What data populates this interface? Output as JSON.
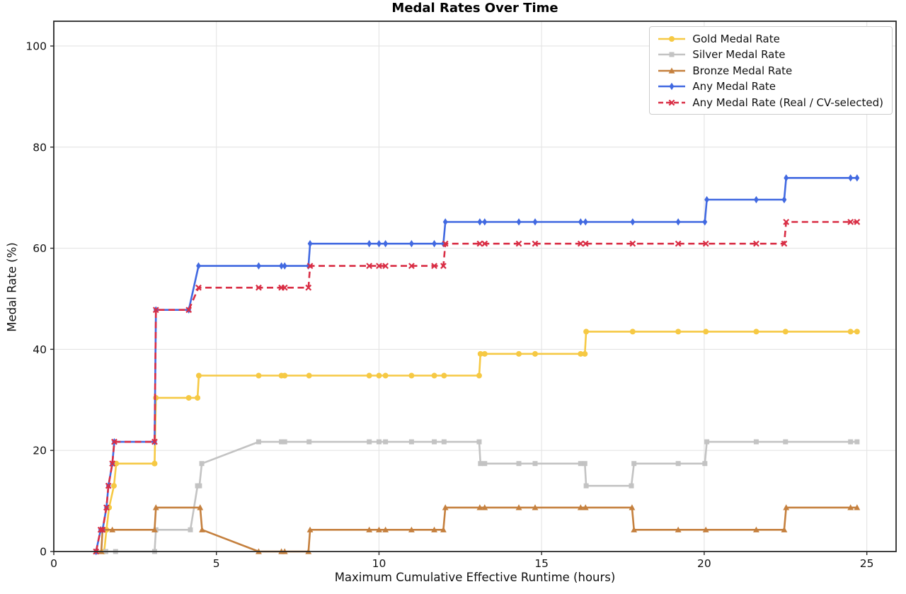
{
  "title": "Medal Rates Over Time",
  "chart_data": {
    "type": "line",
    "title": "Medal Rates Over Time",
    "xlabel": "Maximum Cumulative Effective Runtime (hours)",
    "ylabel": "Medal Rate (%)",
    "xlim": [
      0,
      25.9
    ],
    "ylim": [
      0,
      104.9
    ],
    "x_ticks": [
      0,
      5,
      10,
      15,
      20,
      25
    ],
    "y_ticks": [
      0,
      20,
      40,
      60,
      80,
      100
    ],
    "grid": true,
    "grid_color": "#e4e4e4",
    "spine_color": "#2a2a2a",
    "legend_position": "upper right",
    "series": [
      {
        "name": "Gold Medal Rate",
        "color": "#f6c944",
        "marker": "circle",
        "dash": "solid",
        "points": [
          [
            1.55,
            0
          ],
          [
            1.62,
            4.3
          ],
          [
            1.7,
            8.7
          ],
          [
            1.85,
            13.0
          ],
          [
            1.92,
            17.4
          ],
          [
            3.1,
            17.4
          ],
          [
            3.14,
            30.4
          ],
          [
            4.15,
            30.4
          ],
          [
            4.42,
            30.4
          ],
          [
            4.46,
            34.8
          ],
          [
            6.3,
            34.8
          ],
          [
            7.0,
            34.8
          ],
          [
            7.1,
            34.8
          ],
          [
            7.85,
            34.8
          ],
          [
            9.7,
            34.8
          ],
          [
            10.0,
            34.8
          ],
          [
            10.2,
            34.8
          ],
          [
            11.0,
            34.8
          ],
          [
            11.7,
            34.8
          ],
          [
            12.0,
            34.8
          ],
          [
            13.08,
            34.8
          ],
          [
            13.12,
            39.1
          ],
          [
            13.25,
            39.1
          ],
          [
            14.3,
            39.1
          ],
          [
            14.8,
            39.1
          ],
          [
            16.2,
            39.1
          ],
          [
            16.33,
            39.1
          ],
          [
            16.37,
            43.5
          ],
          [
            17.8,
            43.5
          ],
          [
            19.2,
            43.5
          ],
          [
            20.05,
            43.5
          ],
          [
            21.6,
            43.5
          ],
          [
            22.5,
            43.5
          ],
          [
            24.5,
            43.5
          ],
          [
            24.7,
            43.5
          ]
        ]
      },
      {
        "name": "Silver Medal Rate",
        "color": "#c3c3c3",
        "marker": "square",
        "dash": "solid",
        "points": [
          [
            1.3,
            0
          ],
          [
            1.6,
            0
          ],
          [
            1.9,
            0
          ],
          [
            3.1,
            0
          ],
          [
            3.14,
            4.3
          ],
          [
            4.2,
            4.3
          ],
          [
            4.42,
            13.0
          ],
          [
            4.48,
            13.0
          ],
          [
            4.55,
            17.4
          ],
          [
            6.3,
            21.7
          ],
          [
            7.0,
            21.7
          ],
          [
            7.1,
            21.7
          ],
          [
            7.85,
            21.7
          ],
          [
            9.7,
            21.7
          ],
          [
            10.0,
            21.7
          ],
          [
            10.2,
            21.7
          ],
          [
            11.0,
            21.7
          ],
          [
            11.7,
            21.7
          ],
          [
            12.0,
            21.7
          ],
          [
            13.08,
            21.7
          ],
          [
            13.12,
            17.4
          ],
          [
            13.25,
            17.4
          ],
          [
            14.3,
            17.4
          ],
          [
            14.8,
            17.4
          ],
          [
            16.2,
            17.4
          ],
          [
            16.33,
            17.4
          ],
          [
            16.37,
            13.0
          ],
          [
            17.76,
            13.0
          ],
          [
            17.84,
            17.4
          ],
          [
            19.2,
            17.4
          ],
          [
            20.02,
            17.4
          ],
          [
            20.08,
            21.7
          ],
          [
            21.6,
            21.7
          ],
          [
            22.5,
            21.7
          ],
          [
            24.5,
            21.7
          ],
          [
            24.7,
            21.7
          ]
        ]
      },
      {
        "name": "Bronze Medal Rate",
        "color": "#c5803e",
        "marker": "triangle",
        "dash": "solid",
        "points": [
          [
            1.3,
            0
          ],
          [
            1.46,
            0
          ],
          [
            1.5,
            4.3
          ],
          [
            1.8,
            4.3
          ],
          [
            3.1,
            4.3
          ],
          [
            3.14,
            8.7
          ],
          [
            4.5,
            8.7
          ],
          [
            4.56,
            4.3
          ],
          [
            6.3,
            0
          ],
          [
            7.0,
            0
          ],
          [
            7.1,
            0
          ],
          [
            7.83,
            0
          ],
          [
            7.88,
            4.3
          ],
          [
            9.7,
            4.3
          ],
          [
            10.0,
            4.3
          ],
          [
            10.2,
            4.3
          ],
          [
            11.0,
            4.3
          ],
          [
            11.7,
            4.3
          ],
          [
            11.98,
            4.3
          ],
          [
            12.04,
            8.7
          ],
          [
            13.1,
            8.7
          ],
          [
            13.25,
            8.7
          ],
          [
            14.3,
            8.7
          ],
          [
            14.8,
            8.7
          ],
          [
            16.2,
            8.7
          ],
          [
            16.35,
            8.7
          ],
          [
            17.78,
            8.7
          ],
          [
            17.84,
            4.3
          ],
          [
            19.2,
            4.3
          ],
          [
            20.05,
            4.3
          ],
          [
            21.6,
            4.3
          ],
          [
            22.46,
            4.3
          ],
          [
            22.52,
            8.7
          ],
          [
            24.5,
            8.7
          ],
          [
            24.7,
            8.7
          ]
        ]
      },
      {
        "name": "Any Medal Rate",
        "color": "#4169e1",
        "marker": "diamond",
        "dash": "solid",
        "points": [
          [
            1.3,
            0
          ],
          [
            1.44,
            4.3
          ],
          [
            1.5,
            4.3
          ],
          [
            1.62,
            8.7
          ],
          [
            1.68,
            13.0
          ],
          [
            1.8,
            17.4
          ],
          [
            1.86,
            21.7
          ],
          [
            3.1,
            21.7
          ],
          [
            3.14,
            47.8
          ],
          [
            4.15,
            47.8
          ],
          [
            4.45,
            56.5
          ],
          [
            6.3,
            56.5
          ],
          [
            7.0,
            56.5
          ],
          [
            7.1,
            56.5
          ],
          [
            7.83,
            56.5
          ],
          [
            7.88,
            60.9
          ],
          [
            9.7,
            60.9
          ],
          [
            10.0,
            60.9
          ],
          [
            10.2,
            60.9
          ],
          [
            11.0,
            60.9
          ],
          [
            11.7,
            60.9
          ],
          [
            11.98,
            60.9
          ],
          [
            12.04,
            65.2
          ],
          [
            13.1,
            65.2
          ],
          [
            13.25,
            65.2
          ],
          [
            14.3,
            65.2
          ],
          [
            14.8,
            65.2
          ],
          [
            16.2,
            65.2
          ],
          [
            16.35,
            65.2
          ],
          [
            17.8,
            65.2
          ],
          [
            19.2,
            65.2
          ],
          [
            20.02,
            65.2
          ],
          [
            20.08,
            69.6
          ],
          [
            21.6,
            69.6
          ],
          [
            22.46,
            69.6
          ],
          [
            22.52,
            73.9
          ],
          [
            24.5,
            73.9
          ],
          [
            24.7,
            73.9
          ]
        ]
      },
      {
        "name": "Any Medal Rate (Real / CV-selected)",
        "color": "#d92e45",
        "marker": "x",
        "dash": "dashed",
        "points": [
          [
            1.3,
            0
          ],
          [
            1.44,
            4.3
          ],
          [
            1.5,
            4.3
          ],
          [
            1.62,
            8.7
          ],
          [
            1.68,
            13.0
          ],
          [
            1.8,
            17.4
          ],
          [
            1.86,
            21.7
          ],
          [
            3.1,
            21.7
          ],
          [
            3.14,
            47.8
          ],
          [
            4.15,
            47.8
          ],
          [
            4.45,
            52.2
          ],
          [
            6.3,
            52.2
          ],
          [
            7.0,
            52.2
          ],
          [
            7.1,
            52.2
          ],
          [
            7.83,
            52.2
          ],
          [
            7.88,
            56.5
          ],
          [
            9.7,
            56.5
          ],
          [
            10.0,
            56.5
          ],
          [
            10.2,
            56.5
          ],
          [
            11.0,
            56.5
          ],
          [
            11.7,
            56.5
          ],
          [
            11.98,
            56.5
          ],
          [
            12.04,
            60.9
          ],
          [
            13.1,
            60.9
          ],
          [
            13.25,
            60.9
          ],
          [
            14.3,
            60.9
          ],
          [
            14.8,
            60.9
          ],
          [
            16.2,
            60.9
          ],
          [
            16.35,
            60.9
          ],
          [
            17.8,
            60.9
          ],
          [
            19.2,
            60.9
          ],
          [
            20.05,
            60.9
          ],
          [
            21.6,
            60.9
          ],
          [
            22.46,
            60.9
          ],
          [
            22.52,
            65.2
          ],
          [
            24.5,
            65.2
          ],
          [
            24.7,
            65.2
          ]
        ]
      }
    ]
  }
}
